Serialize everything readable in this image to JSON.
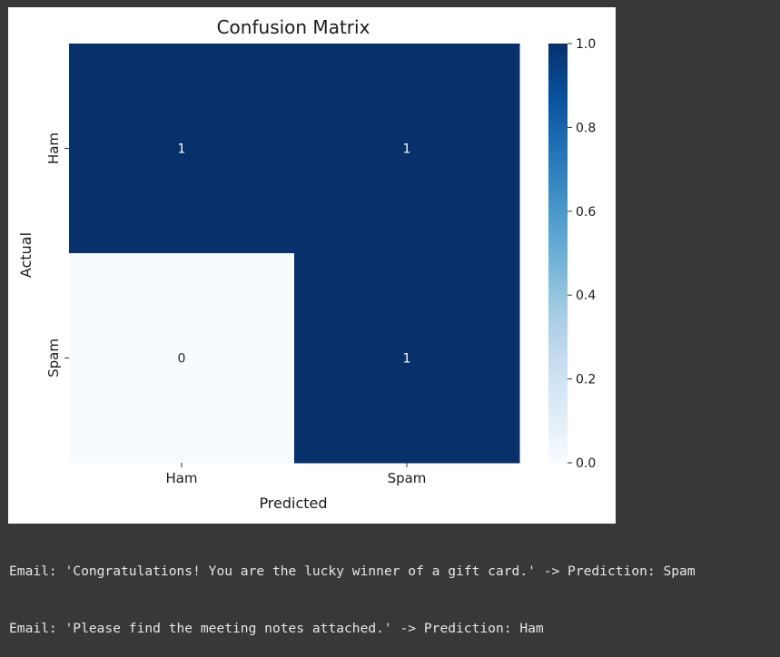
{
  "chart_data": {
    "type": "heatmap",
    "title": "Confusion Matrix",
    "xlabel": "Predicted",
    "ylabel": "Actual",
    "x_categories": [
      "Ham",
      "Spam"
    ],
    "y_categories": [
      "Ham",
      "Spam"
    ],
    "values": [
      [
        1,
        1
      ],
      [
        0,
        1
      ]
    ],
    "annotations": [
      "1",
      "1",
      "0",
      "1"
    ],
    "colormap": "Blues",
    "colors": {
      "low": "#f7fbff",
      "high": "#08306b"
    },
    "colorbar": {
      "range": [
        0,
        1
      ],
      "ticks": [
        0.0,
        0.2,
        0.4,
        0.6,
        0.8,
        1.0
      ],
      "tick_labels": [
        "0.0",
        "0.2",
        "0.4",
        "0.6",
        "0.8",
        "1.0"
      ]
    }
  },
  "output": {
    "lines": [
      "Email: 'Congratulations! You are the lucky winner of a gift card.' -> Prediction: Spam",
      "Email: 'Please find the meeting notes attached.' -> Prediction: Ham"
    ]
  }
}
